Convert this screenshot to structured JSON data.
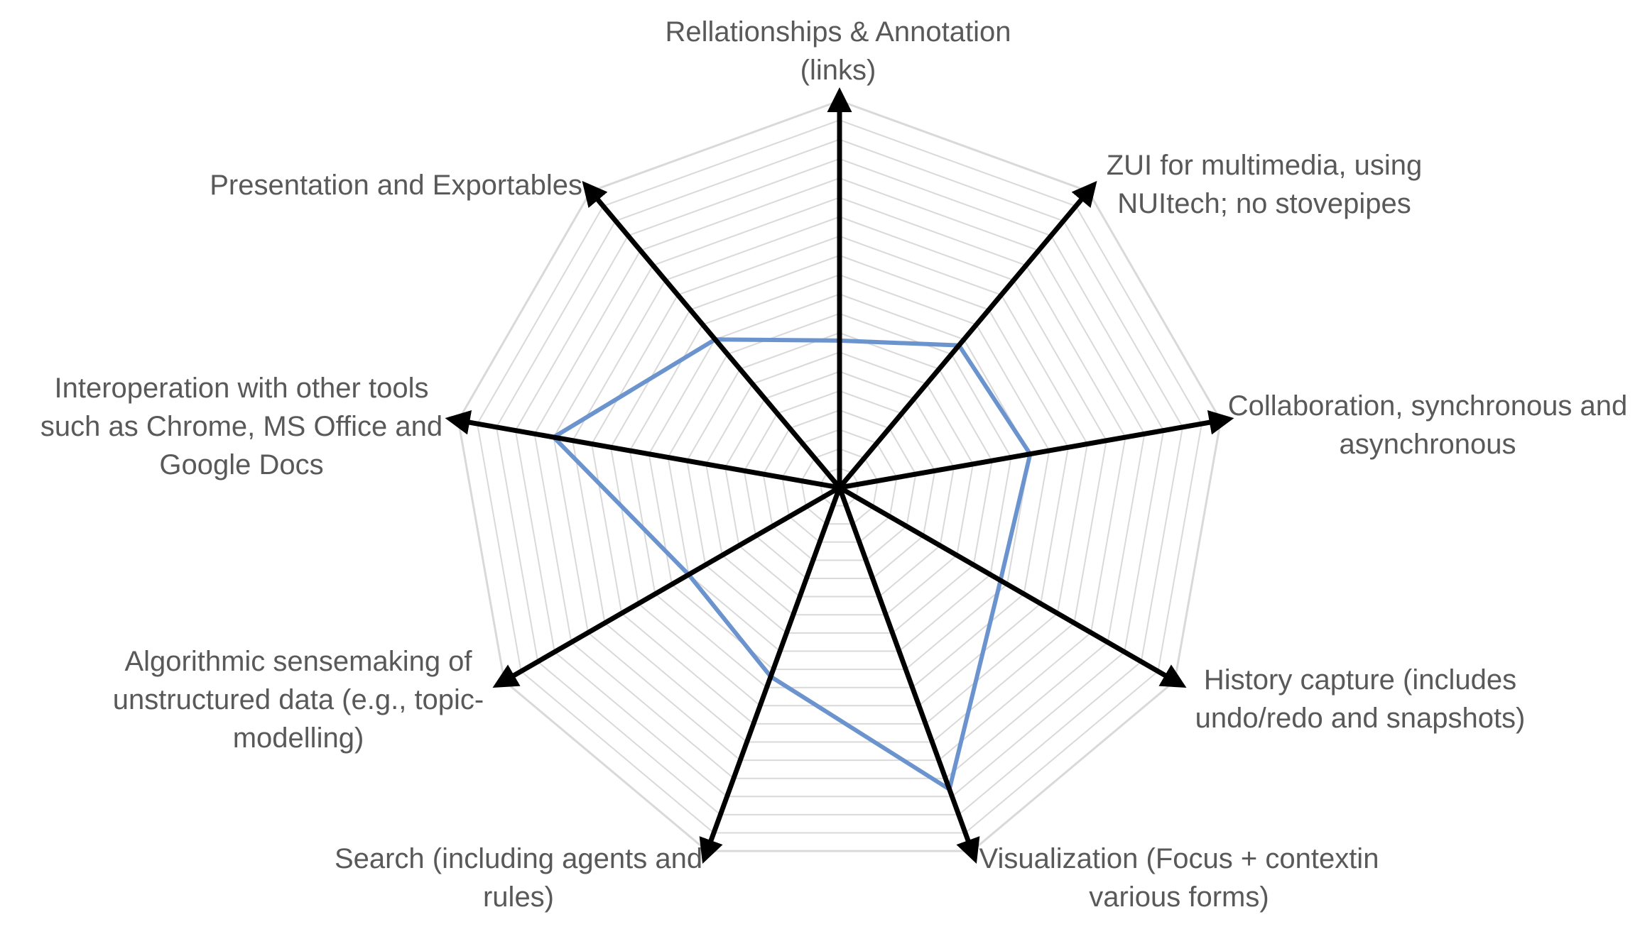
{
  "chart_data": {
    "type": "radar",
    "title": "",
    "axes": [
      {
        "lines": [
          "Rellationships & Annotation",
          "(links)"
        ]
      },
      {
        "lines": [
          "ZUI for multimedia, using",
          "NUItech; no stovepipes"
        ]
      },
      {
        "lines": [
          "Collaboration, synchronous and",
          "asynchronous"
        ]
      },
      {
        "lines": [
          "History capture (includes",
          "undo/redo and snapshots)"
        ]
      },
      {
        "lines": [
          "Visualization (Focus + contextin",
          "various forms)"
        ]
      },
      {
        "lines": [
          "Search (including agents and",
          "rules)"
        ]
      },
      {
        "lines": [
          "Algorithmic sensemaking of",
          "unstructured data (e.g., topic-",
          "modelling)"
        ]
      },
      {
        "lines": [
          "Interoperation with other tools",
          "such as Chrome, MS Office and",
          "Google Docs"
        ]
      },
      {
        "lines": [
          "Presentation and Exportables"
        ]
      }
    ],
    "series": [
      {
        "values": [
          0.38,
          0.48,
          0.5,
          0.48,
          0.83,
          0.52,
          0.45,
          0.75,
          0.5
        ]
      }
    ],
    "range": [
      0,
      1
    ],
    "grid": "polygon",
    "colors": {
      "series": "#6b94cf",
      "grid": "#d9d9d9",
      "axis": "#000000",
      "label": "#595959"
    }
  }
}
